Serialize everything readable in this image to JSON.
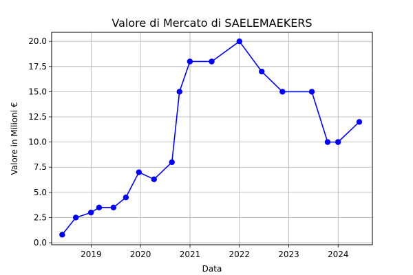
{
  "chart_data": {
    "type": "line",
    "title": "Valore di Mercato di SAELEMAEKERS",
    "xlabel": "Data",
    "ylabel": "Valore in Milioni €",
    "xlim": [
      "2018-03-15",
      "2024-09-10"
    ],
    "ylim": [
      -0.2,
      20.9
    ],
    "grid": true,
    "x_ticks": [
      "2019",
      "2020",
      "2021",
      "2022",
      "2023",
      "2024"
    ],
    "y_ticks": [
      "0.0",
      "2.5",
      "5.0",
      "7.5",
      "10.0",
      "12.5",
      "15.0",
      "17.5",
      "20.0"
    ],
    "series": [
      {
        "color": "#0000ff",
        "marker": "circle",
        "points": [
          {
            "x": "2018-06-01",
            "y": 0.8
          },
          {
            "x": "2018-09-10",
            "y": 2.5
          },
          {
            "x": "2018-12-31",
            "y": 3.0
          },
          {
            "x": "2019-03-01",
            "y": 3.5
          },
          {
            "x": "2019-06-15",
            "y": 3.5
          },
          {
            "x": "2019-09-15",
            "y": 4.5
          },
          {
            "x": "2019-12-20",
            "y": 7.0
          },
          {
            "x": "2020-04-10",
            "y": 6.3
          },
          {
            "x": "2020-08-20",
            "y": 8.0
          },
          {
            "x": "2020-10-15",
            "y": 15.0
          },
          {
            "x": "2020-12-31",
            "y": 18.0
          },
          {
            "x": "2021-06-10",
            "y": 18.0
          },
          {
            "x": "2022-01-01",
            "y": 20.0
          },
          {
            "x": "2022-06-15",
            "y": 17.0
          },
          {
            "x": "2022-11-15",
            "y": 15.0
          },
          {
            "x": "2023-06-20",
            "y": 15.0
          },
          {
            "x": "2023-10-15",
            "y": 10.0
          },
          {
            "x": "2023-12-31",
            "y": 10.0
          },
          {
            "x": "2024-06-05",
            "y": 12.0
          }
        ]
      }
    ]
  }
}
